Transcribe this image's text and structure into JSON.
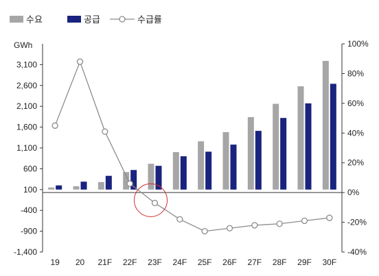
{
  "chart_data": {
    "type": "bar-line-combo",
    "ylabel_left": "GWh",
    "categories": [
      "19",
      "20",
      "21F",
      "22F",
      "23F",
      "24F",
      "25F",
      "26F",
      "27F",
      "28F",
      "29F",
      "30F"
    ],
    "yticks_left": [
      "3,100",
      "2,600",
      "2,100",
      "1,600",
      "1,100",
      "600",
      "100",
      "-400",
      "-900",
      "-1,400"
    ],
    "yticks_right": [
      "100%",
      "80%",
      "60%",
      "40%",
      "20%",
      "0%",
      "-20%",
      "-40%"
    ],
    "ylim_left": [
      -1400,
      3600
    ],
    "ylim_right": [
      -40,
      100
    ],
    "legend_position": "top-left",
    "series": [
      {
        "name": "수요",
        "type": "bar",
        "axis": "left",
        "color": "#a6a6a6",
        "values": [
          150,
          180,
          280,
          520,
          720,
          1000,
          1260,
          1480,
          1840,
          2160,
          2580,
          3190
        ]
      },
      {
        "name": "공급",
        "type": "bar",
        "axis": "left",
        "color": "#1a237e",
        "values": [
          200,
          290,
          430,
          570,
          670,
          900,
          1010,
          1180,
          1510,
          1820,
          2170,
          2640
        ]
      },
      {
        "name": "수급률",
        "type": "line",
        "axis": "right",
        "color": "#8c8c8c",
        "values": [
          45,
          88,
          41,
          6,
          -7,
          -18,
          -26,
          -24,
          -22,
          -21,
          -19,
          -17
        ]
      }
    ],
    "highlight": {
      "shape": "circle",
      "color": "#d32f2f",
      "category": "23F"
    }
  }
}
